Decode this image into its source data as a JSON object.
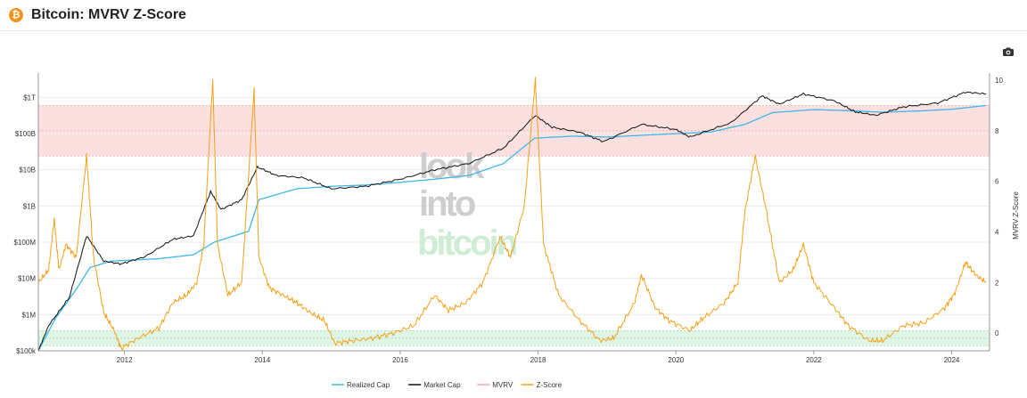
{
  "header": {
    "title": "Bitcoin: MVRV Z-Score",
    "logo_glyph": "₿"
  },
  "toolbar": {
    "screenshot_icon": "camera-icon"
  },
  "watermark": {
    "line1": "look",
    "line2": "into",
    "line3": "bitcoin"
  },
  "colors": {
    "realized": "#3db8e8",
    "market": "#111111",
    "mvrv": "#f4a7b9",
    "zscore": "#f7a11a",
    "red_band": "#fbdada",
    "green_band": "#d9f3e0"
  },
  "chart_data": {
    "type": "line",
    "title": "Bitcoin: MVRV Z-Score",
    "xlabel": "",
    "ylabel_left": "",
    "ylabel_right": "MVRV Z-Score",
    "x_range": [
      2010.75,
      2024.55
    ],
    "x_ticks": [
      "2012",
      "2014",
      "2016",
      "2018",
      "2020",
      "2022",
      "2024"
    ],
    "left_axis": {
      "scale": "log",
      "range": [
        100000,
        3000000000000
      ],
      "ticks": [
        {
          "value": 100000,
          "label": "$100k"
        },
        {
          "value": 1000000,
          "label": "$1M"
        },
        {
          "value": 10000000,
          "label": "$10M"
        },
        {
          "value": 100000000,
          "label": "$100M"
        },
        {
          "value": 1000000000,
          "label": "$1B"
        },
        {
          "value": 10000000000,
          "label": "$10B"
        },
        {
          "value": 100000000000,
          "label": "$100B"
        },
        {
          "value": 1000000000000,
          "label": "$1T"
        }
      ]
    },
    "right_axis": {
      "range": [
        -0.7,
        10
      ],
      "ticks": [
        0,
        2,
        4,
        6,
        8,
        10
      ]
    },
    "bands": [
      {
        "axis": "right",
        "from": 7,
        "to": 9,
        "label": ""
      },
      {
        "axis": "right",
        "from": -0.5,
        "to": 0.1,
        "label": ""
      }
    ],
    "series": [
      {
        "name": "Realized Cap",
        "axis": "left",
        "points": [
          [
            2010.75,
            100000
          ],
          [
            2011.0,
            800000
          ],
          [
            2011.3,
            5000000
          ],
          [
            2011.5,
            20000000
          ],
          [
            2011.8,
            30000000
          ],
          [
            2012.5,
            35000000
          ],
          [
            2013.0,
            45000000
          ],
          [
            2013.3,
            100000000
          ],
          [
            2013.8,
            200000000
          ],
          [
            2013.95,
            1500000000
          ],
          [
            2014.5,
            3000000000
          ],
          [
            2015.0,
            3500000000
          ],
          [
            2015.5,
            3800000000
          ],
          [
            2016.0,
            4500000000
          ],
          [
            2016.5,
            5500000000
          ],
          [
            2017.0,
            7000000000
          ],
          [
            2017.5,
            15000000000
          ],
          [
            2017.95,
            75000000000
          ],
          [
            2018.5,
            85000000000
          ],
          [
            2019.0,
            80000000000
          ],
          [
            2019.5,
            90000000000
          ],
          [
            2020.0,
            100000000000
          ],
          [
            2020.5,
            110000000000
          ],
          [
            2021.0,
            180000000000
          ],
          [
            2021.4,
            380000000000
          ],
          [
            2022.0,
            460000000000
          ],
          [
            2022.5,
            430000000000
          ],
          [
            2023.0,
            390000000000
          ],
          [
            2023.5,
            420000000000
          ],
          [
            2024.0,
            470000000000
          ],
          [
            2024.5,
            600000000000
          ]
        ]
      },
      {
        "name": "Market Cap",
        "axis": "left",
        "points": [
          [
            2010.75,
            100000
          ],
          [
            2010.9,
            500000
          ],
          [
            2011.2,
            3000000
          ],
          [
            2011.45,
            150000000
          ],
          [
            2011.7,
            30000000
          ],
          [
            2011.95,
            25000000
          ],
          [
            2012.3,
            40000000
          ],
          [
            2012.7,
            120000000
          ],
          [
            2013.0,
            150000000
          ],
          [
            2013.25,
            2500000000
          ],
          [
            2013.4,
            800000000
          ],
          [
            2013.7,
            1500000000
          ],
          [
            2013.93,
            12000000000
          ],
          [
            2014.2,
            7000000000
          ],
          [
            2014.6,
            6000000000
          ],
          [
            2015.0,
            3000000000
          ],
          [
            2015.5,
            3500000000
          ],
          [
            2016.0,
            5500000000
          ],
          [
            2016.5,
            10000000000
          ],
          [
            2017.0,
            15000000000
          ],
          [
            2017.5,
            40000000000
          ],
          [
            2017.96,
            320000000000
          ],
          [
            2018.2,
            150000000000
          ],
          [
            2018.6,
            110000000000
          ],
          [
            2018.95,
            60000000000
          ],
          [
            2019.5,
            180000000000
          ],
          [
            2020.0,
            130000000000
          ],
          [
            2020.2,
            80000000000
          ],
          [
            2020.8,
            200000000000
          ],
          [
            2021.25,
            1100000000000
          ],
          [
            2021.5,
            650000000000
          ],
          [
            2021.85,
            1250000000000
          ],
          [
            2022.3,
            800000000000
          ],
          [
            2022.6,
            400000000000
          ],
          [
            2022.9,
            320000000000
          ],
          [
            2023.3,
            550000000000
          ],
          [
            2023.8,
            700000000000
          ],
          [
            2024.2,
            1400000000000
          ],
          [
            2024.5,
            1250000000000
          ]
        ]
      },
      {
        "name": "MVRV",
        "axis": "right",
        "points": []
      },
      {
        "name": "Z-Score",
        "axis": "right",
        "points": [
          [
            2010.75,
            2.0
          ],
          [
            2010.9,
            2.5
          ],
          [
            2010.98,
            4.5
          ],
          [
            2011.05,
            2.5
          ],
          [
            2011.15,
            3.5
          ],
          [
            2011.3,
            3.0
          ],
          [
            2011.45,
            7.0
          ],
          [
            2011.55,
            3.0
          ],
          [
            2011.7,
            0.8
          ],
          [
            2011.85,
            0.1
          ],
          [
            2011.95,
            -0.6
          ],
          [
            2012.2,
            -0.2
          ],
          [
            2012.5,
            0.2
          ],
          [
            2012.7,
            1.2
          ],
          [
            2012.9,
            1.5
          ],
          [
            2013.05,
            2.0
          ],
          [
            2013.15,
            3.5
          ],
          [
            2013.28,
            10.0
          ],
          [
            2013.35,
            3.5
          ],
          [
            2013.5,
            1.5
          ],
          [
            2013.7,
            2.0
          ],
          [
            2013.88,
            9.6
          ],
          [
            2013.95,
            3.0
          ],
          [
            2014.1,
            1.8
          ],
          [
            2014.3,
            1.5
          ],
          [
            2014.5,
            1.2
          ],
          [
            2014.7,
            0.8
          ],
          [
            2014.9,
            0.5
          ],
          [
            2015.05,
            -0.4
          ],
          [
            2015.3,
            -0.3
          ],
          [
            2015.6,
            -0.2
          ],
          [
            2015.9,
            0.0
          ],
          [
            2016.2,
            0.3
          ],
          [
            2016.5,
            1.5
          ],
          [
            2016.7,
            0.9
          ],
          [
            2016.95,
            1.2
          ],
          [
            2017.2,
            2.0
          ],
          [
            2017.45,
            3.8
          ],
          [
            2017.6,
            3.0
          ],
          [
            2017.8,
            5.0
          ],
          [
            2017.96,
            10.0
          ],
          [
            2018.08,
            3.5
          ],
          [
            2018.3,
            1.5
          ],
          [
            2018.6,
            0.5
          ],
          [
            2018.9,
            -0.3
          ],
          [
            2019.1,
            -0.2
          ],
          [
            2019.4,
            1.2
          ],
          [
            2019.5,
            2.3
          ],
          [
            2019.7,
            1.0
          ],
          [
            2019.9,
            0.5
          ],
          [
            2020.2,
            0.1
          ],
          [
            2020.4,
            0.6
          ],
          [
            2020.7,
            1.2
          ],
          [
            2020.9,
            2.0
          ],
          [
            2021.0,
            4.8
          ],
          [
            2021.15,
            7.0
          ],
          [
            2021.3,
            5.0
          ],
          [
            2021.5,
            2.0
          ],
          [
            2021.7,
            2.5
          ],
          [
            2021.85,
            3.5
          ],
          [
            2022.0,
            2.0
          ],
          [
            2022.3,
            1.0
          ],
          [
            2022.5,
            0.3
          ],
          [
            2022.8,
            -0.3
          ],
          [
            2023.0,
            -0.3
          ],
          [
            2023.3,
            0.3
          ],
          [
            2023.6,
            0.4
          ],
          [
            2023.9,
            1.0
          ],
          [
            2024.05,
            1.6
          ],
          [
            2024.2,
            2.8
          ],
          [
            2024.35,
            2.3
          ],
          [
            2024.5,
            2.0
          ]
        ]
      }
    ],
    "legend": {
      "placement": "bottom-center",
      "items": [
        {
          "label": "Realized Cap",
          "color": "#3db8e8"
        },
        {
          "label": "Market Cap",
          "color": "#111111"
        },
        {
          "label": "MVRV",
          "color": "#f4a7b9"
        },
        {
          "label": "Z-Score",
          "color": "#f7a11a"
        }
      ]
    }
  }
}
